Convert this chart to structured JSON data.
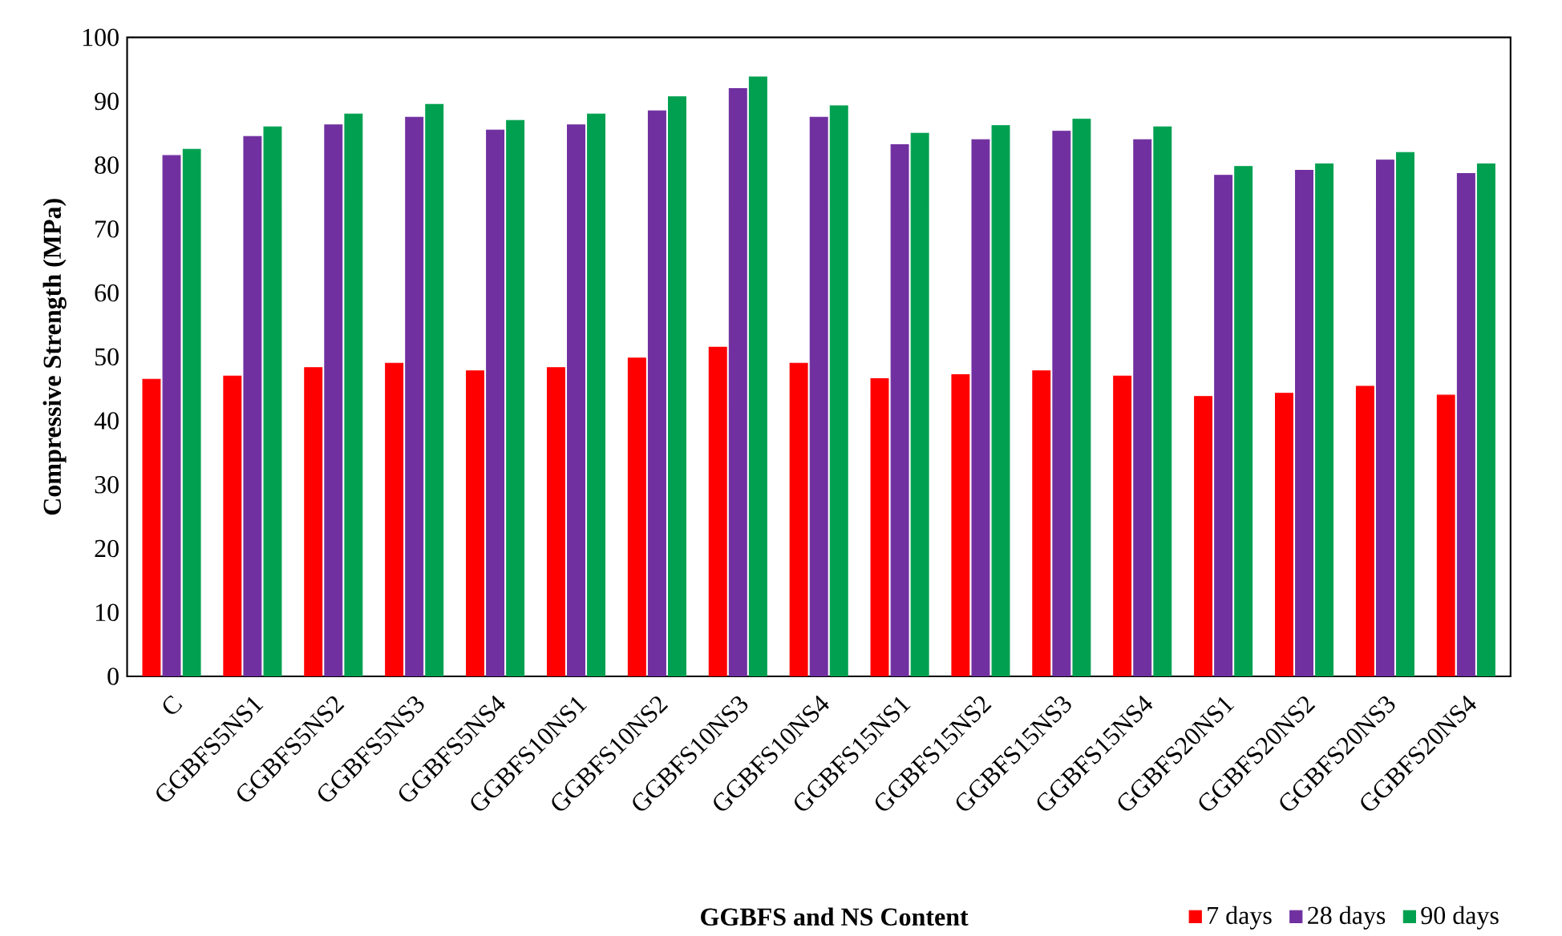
{
  "chart_data": {
    "type": "bar",
    "xlabel": "GGBFS and NS Content",
    "ylabel": "Compressive Strength (MPa)",
    "categories": [
      "C",
      "GGBFS5NS1",
      "GGBFS5NS2",
      "GGBFS5NS3",
      "GGBFS5NS4",
      "GGBFS10NS1",
      "GGBFS10NS2",
      "GGBFS10NS3",
      "GGBFS10NS4",
      "GGBFS15NS1",
      "GGBFS15NS2",
      "GGBFS15NS3",
      "GGBFS15NS4",
      "GGBFS20NS1",
      "GGBFS20NS2",
      "GGBFS20NS3",
      "GGBFS20NS4"
    ],
    "series": [
      {
        "name": "7 days",
        "color": "#ff0000",
        "values": [
          46.5,
          47,
          48.3,
          49,
          47.8,
          48.3,
          49.8,
          51.5,
          49,
          46.6,
          47.2,
          47.8,
          47,
          43.8,
          44.3,
          45.4,
          44
        ]
      },
      {
        "name": "28 days",
        "color": "#7030a0",
        "values": [
          81.5,
          84.5,
          86.3,
          87.5,
          85.5,
          86.3,
          88.5,
          92,
          87.5,
          83.2,
          84,
          85.3,
          84,
          78.4,
          79.2,
          80.8,
          78.7
        ]
      },
      {
        "name": "90 days",
        "color": "#00a050",
        "values": [
          82.5,
          86,
          88,
          89.5,
          87,
          88,
          90.7,
          93.8,
          89.3,
          85,
          86.2,
          87.2,
          86,
          79.8,
          80.2,
          82,
          80.2
        ]
      }
    ],
    "ylim": [
      0,
      100
    ],
    "yticks": [
      0,
      10,
      20,
      30,
      40,
      50,
      60,
      70,
      80,
      90,
      100
    ],
    "grid": false,
    "legend": "bottom right"
  }
}
